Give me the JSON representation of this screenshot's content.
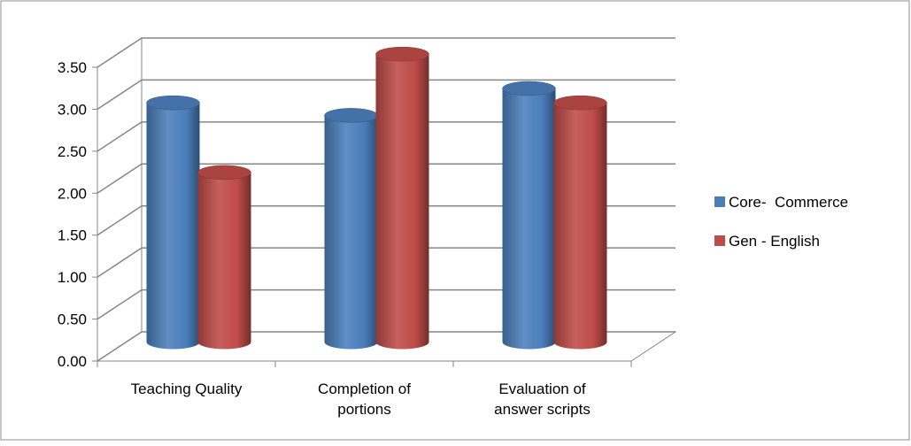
{
  "chart_data": {
    "type": "bar",
    "title": "",
    "xlabel": "",
    "ylabel": "",
    "categories": [
      "Teaching Quality",
      "Completion of portions",
      "Evaluation of answer scripts"
    ],
    "category_lines": [
      [
        "Teaching Quality"
      ],
      [
        "Completion of",
        "portions"
      ],
      [
        "Evaluation of",
        "answer scripts"
      ]
    ],
    "series": [
      {
        "name": "Core-  Commerce",
        "color": "#4a7ebb",
        "values": [
          2.85,
          2.7,
          3.02
        ]
      },
      {
        "name": "Gen - English",
        "color": "#be4b48",
        "values": [
          2.02,
          3.43,
          2.85
        ]
      }
    ],
    "ylim": [
      0,
      3.5
    ],
    "yticks": [
      "0.00",
      "0.50",
      "1.00",
      "1.50",
      "2.00",
      "2.50",
      "3.00",
      "3.50"
    ],
    "grid": true,
    "legend_position": "right",
    "style": "3d-cylinder"
  }
}
